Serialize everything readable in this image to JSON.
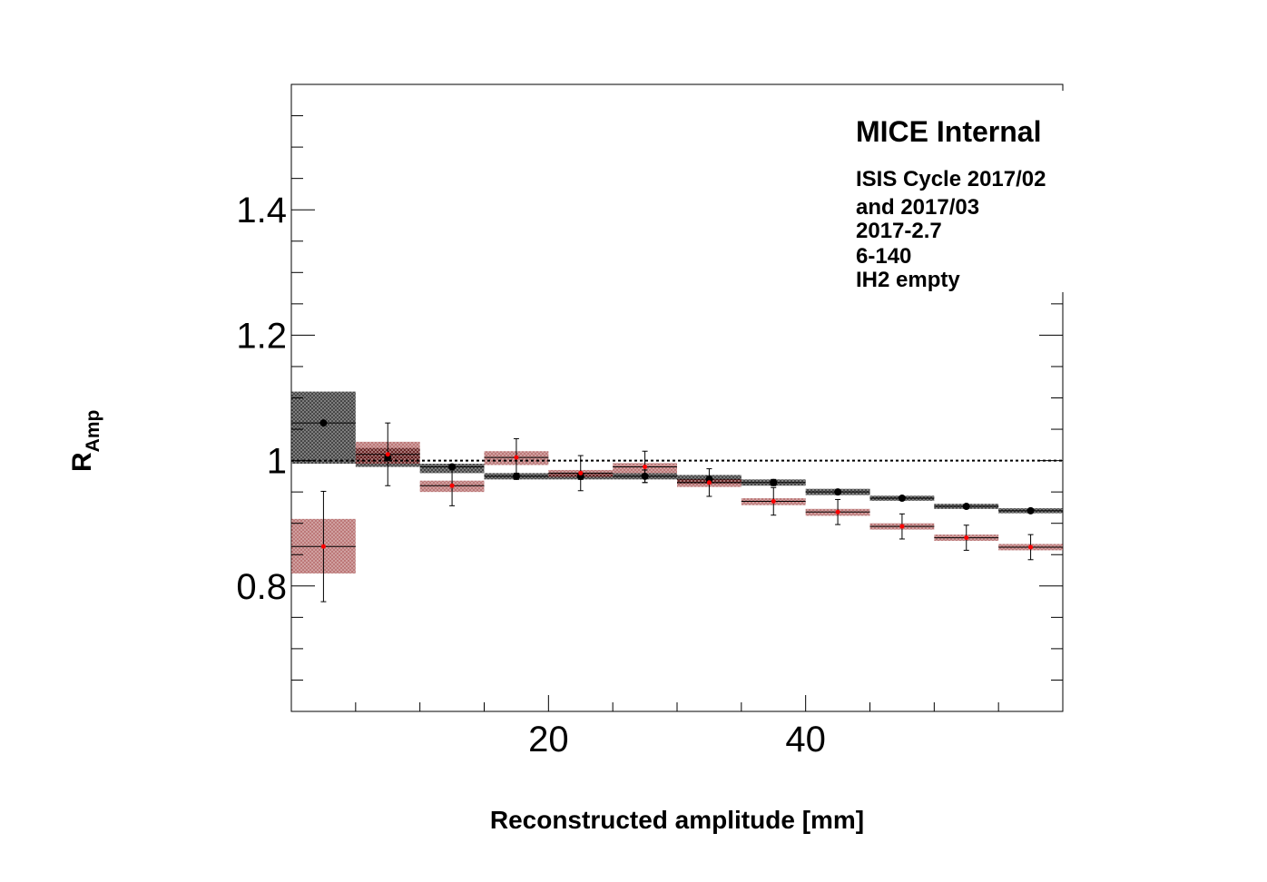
{
  "chart_data": {
    "type": "scatter",
    "xlabel": "Reconstructed amplitude [mm]",
    "ylabel_main": "R",
    "ylabel_sub": "Amp",
    "xlim": [
      0,
      60
    ],
    "ylim": [
      0.6,
      1.6
    ],
    "x_ticks": [
      20,
      40
    ],
    "y_ticks": [
      0.8,
      1,
      1.2,
      1.4
    ],
    "y_tick_labels": [
      "0.8",
      "1",
      "1.2",
      "1.4"
    ],
    "x_tick_labels": [
      "20",
      "40"
    ],
    "reference_line": 1.0,
    "annotations": {
      "title": "MICE Internal",
      "lines": [
        "ISIS Cycle 2017/02",
        "and 2017/03",
        "2017-2.7",
        "6-140",
        "IH2 empty"
      ]
    },
    "bin_edges": [
      0,
      5,
      10,
      15,
      20,
      25,
      30,
      35,
      40,
      45,
      50,
      55,
      60
    ],
    "series": [
      {
        "color": "#000000",
        "band_color": "#000000",
        "x": [
          2.5,
          7.5,
          12.5,
          17.5,
          22.5,
          27.5,
          32.5,
          37.5,
          42.5,
          47.5,
          52.5,
          57.5
        ],
        "y": [
          1.06,
          1.005,
          0.99,
          0.975,
          0.975,
          0.975,
          0.97,
          0.965,
          0.95,
          0.94,
          0.927,
          0.92
        ],
        "y_err": [
          0.0,
          0.0,
          0.0,
          0.005,
          0.005,
          0.01,
          0.005,
          0.005,
          0.003,
          0.003,
          0.003,
          0.003
        ],
        "band_low": [
          0.995,
          0.99,
          0.98,
          0.97,
          0.97,
          0.97,
          0.963,
          0.96,
          0.945,
          0.936,
          0.923,
          0.916
        ],
        "band_high": [
          1.11,
          1.02,
          0.995,
          0.98,
          0.98,
          0.98,
          0.977,
          0.97,
          0.955,
          0.944,
          0.931,
          0.924
        ]
      },
      {
        "color": "#ff0000",
        "band_color": "#800000",
        "x": [
          2.5,
          7.5,
          12.5,
          17.5,
          22.5,
          27.5,
          32.5,
          37.5,
          42.5,
          47.5,
          52.5,
          57.5
        ],
        "y": [
          0.863,
          1.01,
          0.96,
          1.005,
          0.98,
          0.99,
          0.965,
          0.935,
          0.918,
          0.895,
          0.877,
          0.862
        ],
        "y_err": [
          0.088,
          0.05,
          0.032,
          0.03,
          0.028,
          0.025,
          0.022,
          0.022,
          0.02,
          0.02,
          0.02,
          0.02
        ],
        "band_low": [
          0.82,
          0.995,
          0.95,
          0.993,
          0.974,
          0.98,
          0.958,
          0.929,
          0.912,
          0.89,
          0.872,
          0.857
        ],
        "band_high": [
          0.907,
          1.03,
          0.968,
          1.015,
          0.985,
          0.996,
          0.97,
          0.94,
          0.923,
          0.9,
          0.882,
          0.867
        ]
      }
    ]
  }
}
